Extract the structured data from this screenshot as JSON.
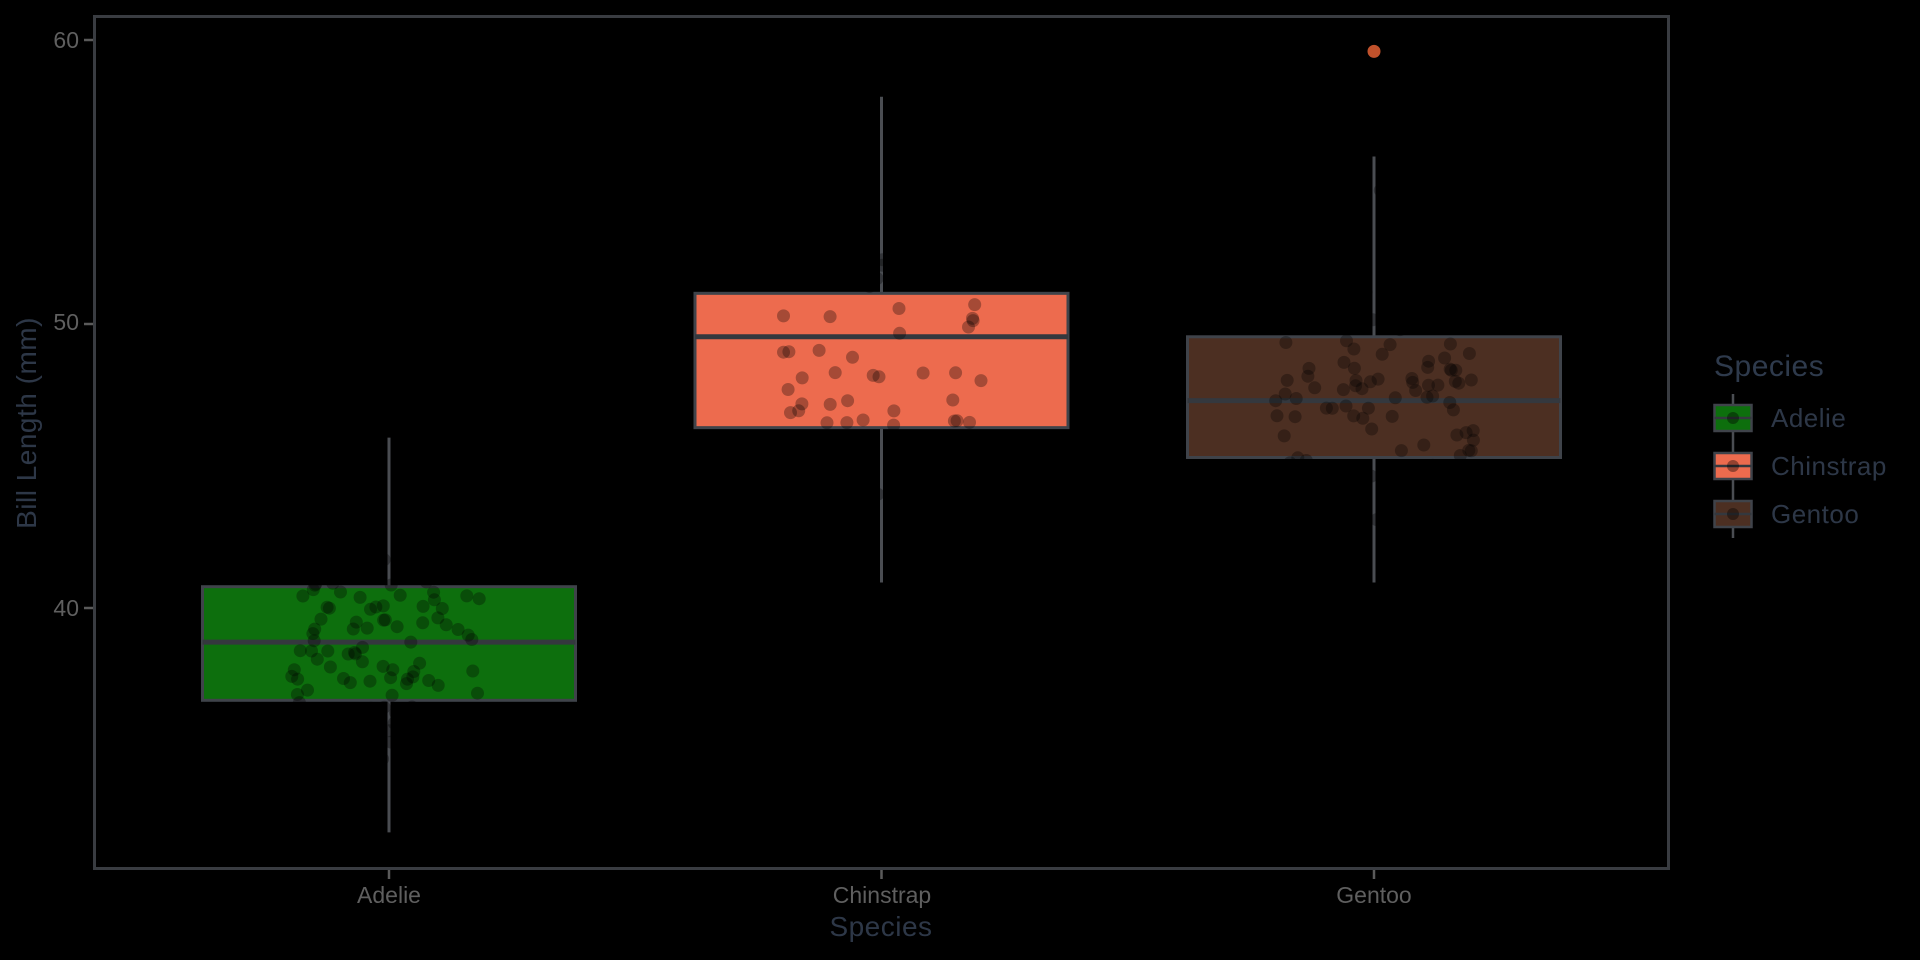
{
  "chart_data": {
    "type": "boxplot",
    "variant": "boxplot-with-jittered-points",
    "title": "",
    "xlabel": "Species",
    "ylabel": "Bill Length (mm)",
    "legend_title": "Species",
    "legend_position": "right",
    "background_color": "#000000",
    "grid": "off",
    "y_axis": {
      "ticks": [
        40,
        50,
        60
      ],
      "tick_labels": [
        "40",
        "50",
        "60"
      ],
      "range": [
        30.8,
        60.9
      ]
    },
    "x_axis": {
      "categories": [
        "Adelie",
        "Chinstrap",
        "Gentoo"
      ]
    },
    "series": [
      {
        "name": "Adelie",
        "fill": "#0d6f0d",
        "box": {
          "whisker_low": 32.1,
          "q1": 36.75,
          "median": 38.8,
          "q3": 40.75,
          "whisker_high": 46.0
        },
        "outliers": [],
        "n_points": 151
      },
      {
        "name": "Chinstrap",
        "fill": "#ed6b4e",
        "box": {
          "whisker_low": 40.9,
          "q1": 46.35,
          "median": 49.55,
          "q3": 51.08,
          "whisker_high": 58.0
        },
        "outliers": [],
        "n_points": 68
      },
      {
        "name": "Gentoo",
        "fill": "#4c2f22",
        "box": {
          "whisker_low": 40.9,
          "q1": 45.3,
          "median": 47.3,
          "q3": 49.55,
          "whisker_high": 55.9
        },
        "outliers": [
          59.6
        ],
        "n_points": 123
      }
    ],
    "colors": {
      "box_stroke": "#3f434a",
      "median_stroke": "#34383e",
      "whisker": "#4a4d52",
      "panel_border": "#393c41",
      "tick_mark": "#5a5a5a",
      "tick_label": "#5f5f5f",
      "axis_title": "#2d3747",
      "legend_text": "#2d3747",
      "legend_title_color": "#2e3a4c",
      "jitter_point": "rgba(0,0,0,0.30)",
      "outlier_point": "#c0512b"
    }
  }
}
